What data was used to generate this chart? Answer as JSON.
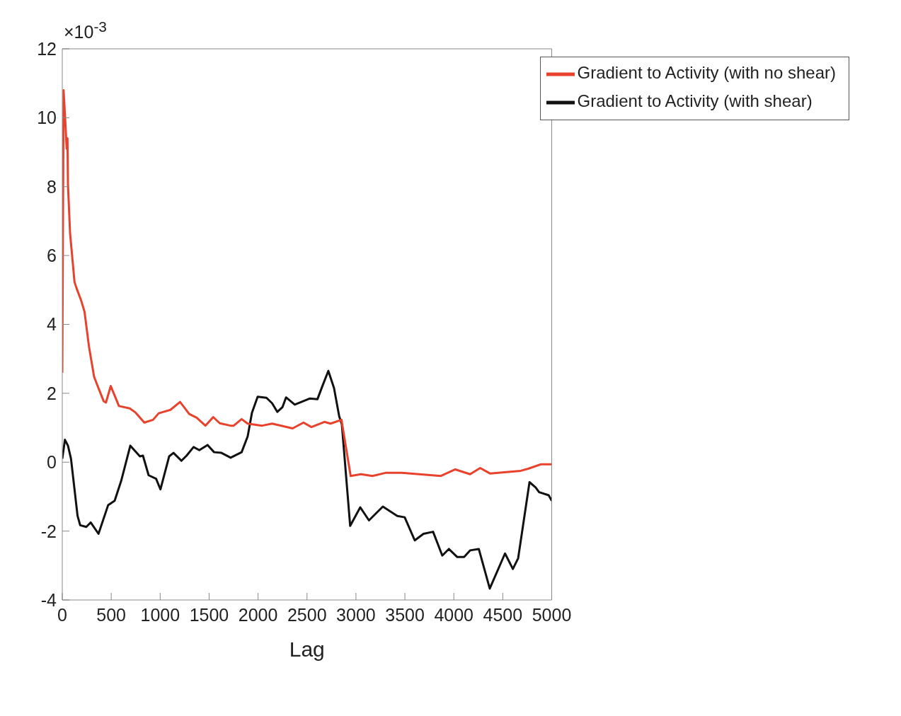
{
  "chart_data": {
    "type": "line",
    "xlabel": "Lag",
    "annotations": [
      "×10$^{-3}$"
    ],
    "xlim": [
      0,
      5000
    ],
    "xticks": [
      0,
      500,
      1000,
      1500,
      2000,
      2500,
      3000,
      3500,
      4000,
      4500,
      5000
    ],
    "ylim": [
      -4,
      12
    ],
    "yticks": [
      -4,
      -2,
      0,
      2,
      4,
      6,
      8,
      10,
      12
    ],
    "grid": false,
    "legend": "top right",
    "marker": "none",
    "line_style": "solid",
    "series": [
      {
        "name": "Gradient to Activity (with shear)",
        "color": "#111111",
        "x": [
          0,
          27,
          58,
          89,
          156,
          183,
          245,
          290,
          370,
          468,
          535,
          602,
          695,
          793,
          824,
          882,
          958,
          1003,
          1092,
          1136,
          1217,
          1270,
          1341,
          1400,
          1484,
          1551,
          1626,
          1720,
          1832,
          1894,
          1938,
          1996,
          2086,
          2144,
          2197,
          2250,
          2286,
          2375,
          2531,
          2607,
          2656,
          2718,
          2776,
          2829,
          2856,
          2941,
          3044,
          3133,
          3275,
          3422,
          3498,
          3601,
          3690,
          3788,
          3882,
          3949,
          4033,
          4105,
          4166,
          4255,
          4367,
          4523,
          4603,
          4657,
          4773,
          4835,
          4871,
          4969,
          5000
        ],
        "values": [
          0.1,
          0.65,
          0.48,
          0.1,
          -1.56,
          -1.83,
          -1.88,
          -1.75,
          -2.08,
          -1.25,
          -1.12,
          -0.54,
          0.48,
          0.17,
          0.19,
          -0.38,
          -0.48,
          -0.79,
          0.17,
          0.27,
          0.04,
          0.19,
          0.44,
          0.35,
          0.5,
          0.29,
          0.27,
          0.13,
          0.29,
          0.75,
          1.44,
          1.9,
          1.87,
          1.71,
          1.46,
          1.6,
          1.88,
          1.67,
          1.85,
          1.83,
          2.2,
          2.65,
          2.15,
          1.33,
          1.1,
          -1.85,
          -1.31,
          -1.69,
          -1.29,
          -1.56,
          -1.6,
          -2.27,
          -2.08,
          -2.02,
          -2.71,
          -2.52,
          -2.75,
          -2.75,
          -2.56,
          -2.52,
          -3.67,
          -2.65,
          -3.1,
          -2.79,
          -0.58,
          -0.73,
          -0.87,
          -0.96,
          -1.12
        ]
      },
      {
        "name": "Gradient to Activity (with no shear)",
        "color": "#e8412c",
        "x": [
          0,
          13,
          27,
          45,
          53,
          58,
          80,
          125,
          147,
          192,
          227,
          272,
          325,
          356,
          423,
          446,
          495,
          579,
          690,
          749,
          838,
          927,
          985,
          1105,
          1203,
          1297,
          1373,
          1462,
          1542,
          1609,
          1720,
          1751,
          1832,
          1894,
          2041,
          2144,
          2353,
          2464,
          2545,
          2678,
          2740,
          2852,
          2946,
          3052,
          3168,
          3302,
          3467,
          3868,
          4015,
          4166,
          4269,
          4372,
          4684,
          4759,
          4893,
          5000
        ],
        "values": [
          2.6,
          10.8,
          10.1,
          9.1,
          9.4,
          8.06,
          6.63,
          5.23,
          5.04,
          4.7,
          4.37,
          3.37,
          2.48,
          2.25,
          1.77,
          1.73,
          2.21,
          1.63,
          1.56,
          1.44,
          1.15,
          1.23,
          1.42,
          1.52,
          1.75,
          1.4,
          1.29,
          1.06,
          1.31,
          1.13,
          1.06,
          1.06,
          1.25,
          1.12,
          1.06,
          1.12,
          0.98,
          1.15,
          1.02,
          1.17,
          1.12,
          1.23,
          -0.4,
          -0.35,
          -0.4,
          -0.31,
          -0.31,
          -0.4,
          -0.21,
          -0.35,
          -0.17,
          -0.33,
          -0.25,
          -0.19,
          -0.06,
          -0.06
        ]
      }
    ]
  }
}
